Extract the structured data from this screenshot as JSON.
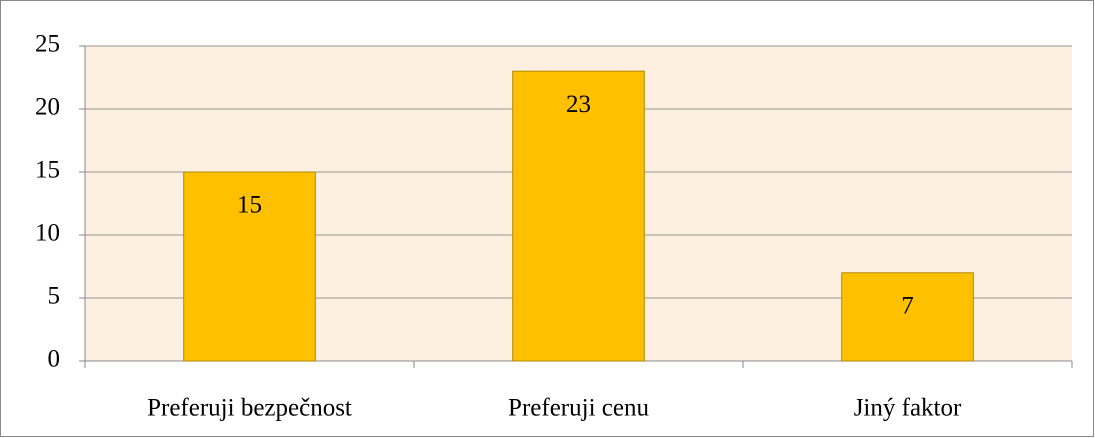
{
  "chart_data": {
    "type": "bar",
    "categories": [
      "Preferuji bezpečnost",
      "Preferuji cenu",
      "Jiný faktor"
    ],
    "values": [
      15,
      23,
      7
    ],
    "color": "#ffc000",
    "ylim": [
      0,
      25
    ],
    "yticks": [
      0,
      5,
      10,
      15,
      20,
      25
    ],
    "grid": true
  }
}
